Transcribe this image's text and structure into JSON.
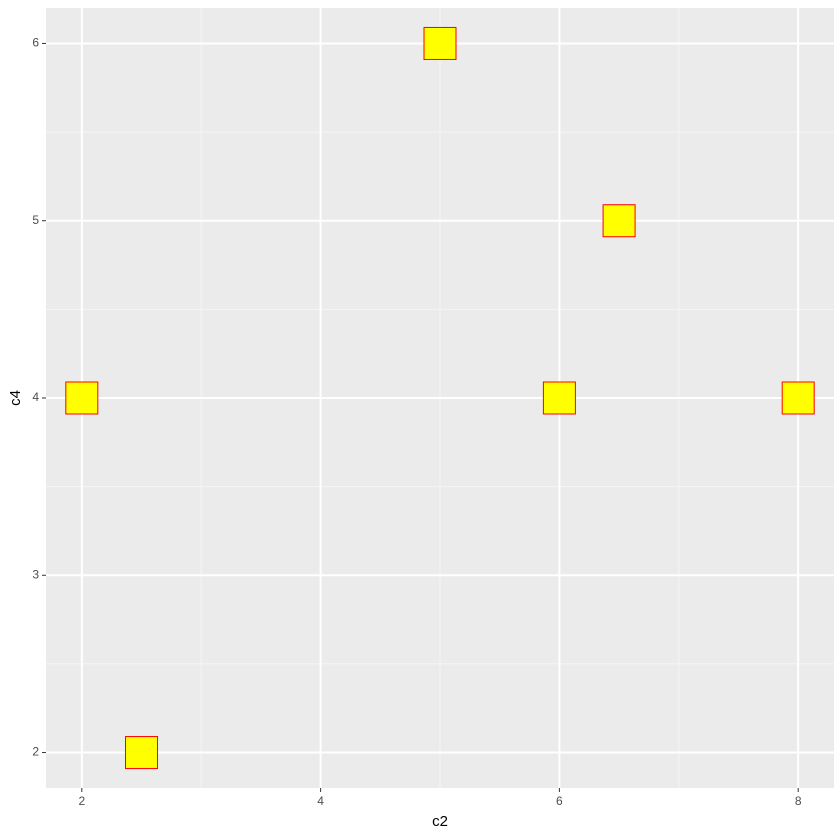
{
  "chart_data": {
    "type": "scatter",
    "x_label": "c2",
    "y_label": "c4",
    "x": [
      2,
      2.5,
      5,
      6,
      6.5,
      8
    ],
    "values": [
      4,
      2,
      6,
      4,
      5,
      4
    ],
    "color": "#ffff00",
    "edge_color": "#ff0000",
    "marker": "square",
    "xlim": [
      1.7,
      8.3
    ],
    "xticks": [
      2,
      4,
      6,
      8
    ],
    "ylim": [
      1.8,
      6.2
    ],
    "yticks": [
      2,
      3,
      4,
      5,
      6
    ],
    "grid": true,
    "minor_grid": true
  }
}
